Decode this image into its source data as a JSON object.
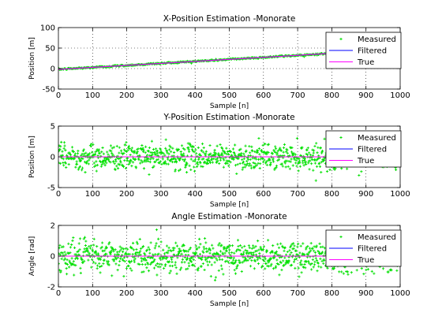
{
  "chart_data": [
    {
      "type": "scatter",
      "title": "X-Position Estimation -Monorate",
      "xlabel": "Sample [n]",
      "ylabel": "Position [m]",
      "xlim": [
        0,
        1000
      ],
      "ylim": [
        -50,
        100
      ],
      "xticks": [
        "0",
        "100",
        "200",
        "300",
        "400",
        "500",
        "600",
        "700",
        "800",
        "900",
        "1000"
      ],
      "yticks": [
        "-50",
        "0",
        "50",
        "100"
      ],
      "grid": true,
      "legend_position": "top-right",
      "series": [
        {
          "name": "Measured",
          "style": "markers",
          "color": "#00e000",
          "trend": {
            "x": [
              0,
              1000
            ],
            "y": [
              -2,
              47
            ]
          },
          "noise_std": 1.0,
          "count": 500
        },
        {
          "name": "Filtered",
          "style": "line",
          "color": "#0000ff",
          "x": [
            0,
            1000
          ],
          "y": [
            -2,
            47
          ]
        },
        {
          "name": "True",
          "style": "line",
          "color": "#ff00ff",
          "x": [
            0,
            1000
          ],
          "y": [
            -2,
            47
          ]
        }
      ]
    },
    {
      "type": "scatter",
      "title": "Y-Position Estimation -Monorate",
      "xlabel": "Sample [n]",
      "ylabel": "Position [m]",
      "xlim": [
        0,
        1000
      ],
      "ylim": [
        -5,
        5
      ],
      "xticks": [
        "0",
        "100",
        "200",
        "300",
        "400",
        "500",
        "600",
        "700",
        "800",
        "900",
        "1000"
      ],
      "yticks": [
        "-5",
        "0",
        "5"
      ],
      "grid": true,
      "legend_position": "top-right",
      "series": [
        {
          "name": "Measured",
          "style": "markers",
          "color": "#00e000",
          "trend": {
            "x": [
              0,
              1000
            ],
            "y": [
              0,
              0
            ]
          },
          "noise_std": 1.0,
          "count": 1000
        },
        {
          "name": "Filtered",
          "style": "line",
          "color": "#0000ff",
          "x": [
            0,
            1000
          ],
          "y": [
            0,
            0
          ]
        },
        {
          "name": "True",
          "style": "line",
          "color": "#ff00ff",
          "x": [
            0,
            1000
          ],
          "y": [
            0,
            0
          ]
        }
      ]
    },
    {
      "type": "scatter",
      "title": "Angle Estimation -Monorate",
      "xlabel": "Sample [n]",
      "ylabel": "Angle [rad]",
      "xlim": [
        0,
        1000
      ],
      "ylim": [
        -2,
        2
      ],
      "xticks": [
        "0",
        "100",
        "200",
        "300",
        "400",
        "500",
        "600",
        "700",
        "800",
        "900",
        "1000"
      ],
      "yticks": [
        "-2",
        "0",
        "2"
      ],
      "grid": true,
      "legend_position": "top-right",
      "series": [
        {
          "name": "Measured",
          "style": "markers",
          "color": "#00e000",
          "trend": {
            "x": [
              0,
              1000
            ],
            "y": [
              0,
              0
            ]
          },
          "noise_std": 0.5,
          "count": 1000
        },
        {
          "name": "Filtered",
          "style": "line",
          "color": "#0000ff",
          "x": [
            0,
            1000
          ],
          "y": [
            0,
            0
          ]
        },
        {
          "name": "True",
          "style": "line",
          "color": "#ff00ff",
          "x": [
            0,
            1000
          ],
          "y": [
            0,
            0
          ]
        }
      ]
    }
  ]
}
